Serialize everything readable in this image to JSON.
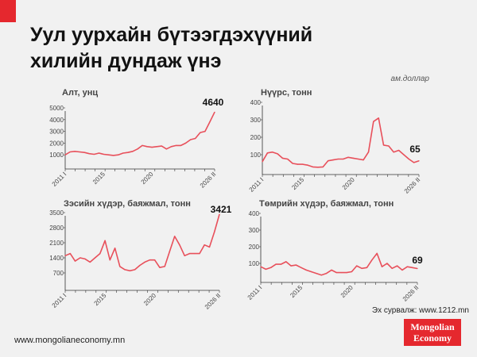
{
  "header": {
    "title_line1": "Уул уурхайн бүтээгдэхүүний",
    "title_line2": "хилийн дундаж үнэ",
    "unit": "ам.доллар"
  },
  "footer": {
    "source": "Эх сурвалж: www.1212.mn",
    "website": "www.mongolianeconomy.mn",
    "logo_text": "Mongolian Economy"
  },
  "colors": {
    "line": "#e8505b",
    "accent": "#e5282e"
  },
  "chart_data": [
    {
      "type": "line",
      "title": "Алт, унц",
      "last_value_label": "4640",
      "ylim": [
        0,
        5000
      ],
      "y_ticks": [
        1000,
        2000,
        3000,
        4000,
        5000
      ],
      "x_ticks": [
        {
          "label": "2011 I",
          "x": 2011
        },
        {
          "label": "2015",
          "x": 2015
        },
        {
          "label": "2020",
          "x": 2020
        },
        {
          "label": "2026 II",
          "x": 2026.5
        }
      ],
      "values": [
        1000,
        1250,
        1300,
        1250,
        1200,
        1100,
        1050,
        1150,
        1050,
        1000,
        950,
        1000,
        1150,
        1200,
        1300,
        1500,
        1800,
        1700,
        1650,
        1700,
        1750,
        1500,
        1700,
        1800,
        1800,
        2000,
        2300,
        2400,
        2900,
        3000,
        3800,
        4640
      ]
    },
    {
      "type": "line",
      "title": "Нүүрс, тонн",
      "last_value_label": "65",
      "ylim": [
        0,
        400
      ],
      "y_ticks": [
        100,
        200,
        300,
        400
      ],
      "x_ticks": [
        {
          "label": "2011 I",
          "x": 2011
        },
        {
          "label": "2015",
          "x": 2015
        },
        {
          "label": "2020",
          "x": 2020
        },
        {
          "label": "2026 II",
          "x": 2026.5
        }
      ],
      "values": [
        60,
        110,
        115,
        105,
        80,
        75,
        50,
        45,
        45,
        40,
        30,
        28,
        30,
        65,
        70,
        75,
        75,
        85,
        80,
        75,
        70,
        115,
        290,
        310,
        155,
        150,
        115,
        125,
        100,
        75,
        55,
        65
      ]
    },
    {
      "type": "line",
      "title": "Зэсийн хүдэр, баяжмал, тонн",
      "last_value_label": "3421",
      "ylim": [
        0,
        3500
      ],
      "y_ticks": [
        700,
        1400,
        2100,
        2800,
        3500
      ],
      "x_ticks": [
        {
          "label": "2011 I",
          "x": 2011
        },
        {
          "label": "2015",
          "x": 2015
        },
        {
          "label": "2020",
          "x": 2020
        },
        {
          "label": "2026 II",
          "x": 2026.5
        }
      ],
      "values": [
        1500,
        1600,
        1250,
        1400,
        1350,
        1200,
        1400,
        1600,
        2200,
        1300,
        1850,
        1000,
        850,
        800,
        850,
        1050,
        1200,
        1300,
        1300,
        950,
        1000,
        1700,
        2400,
        2000,
        1500,
        1600,
        1600,
        1600,
        2000,
        1900,
        2600,
        3421
      ]
    },
    {
      "type": "line",
      "title": "Төмрийн хүдэр, баяжмал, тонн",
      "last_value_label": "69",
      "ylim": [
        0,
        400
      ],
      "y_ticks": [
        100,
        200,
        300,
        400
      ],
      "x_ticks": [
        {
          "label": "2011 I",
          "x": 2011
        },
        {
          "label": "2015",
          "x": 2015
        },
        {
          "label": "2020",
          "x": 2020
        },
        {
          "label": "2026 II",
          "x": 2026.5
        }
      ],
      "values": [
        80,
        65,
        75,
        95,
        95,
        110,
        85,
        90,
        75,
        60,
        50,
        40,
        30,
        40,
        60,
        45,
        45,
        45,
        50,
        85,
        70,
        75,
        120,
        160,
        80,
        100,
        70,
        85,
        60,
        80,
        75,
        69
      ]
    }
  ]
}
